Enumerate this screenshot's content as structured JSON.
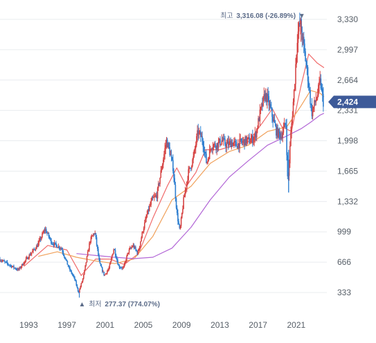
{
  "chart_data": {
    "type": "candlestick",
    "ylim": [
      280,
      3350
    ],
    "xlim": [
      1990,
      2024.2
    ],
    "y_ticks": [
      "3,330",
      "2,997",
      "2,664",
      "2,331",
      "1,998",
      "1,665",
      "1,332",
      "999",
      "666",
      "333"
    ],
    "y_tick_values": [
      3330,
      2997,
      2664,
      2331,
      1998,
      1665,
      1332,
      999,
      666,
      333
    ],
    "x_ticks": [
      "1993",
      "1997",
      "2001",
      "2005",
      "2009",
      "2013",
      "2017",
      "2021"
    ],
    "x_tick_values": [
      1993,
      1997,
      2001,
      2005,
      2009,
      2013,
      2017,
      2021
    ],
    "current": {
      "label": "2,424",
      "value": 2424
    },
    "high": {
      "label_prefix": "최고",
      "label_value": "3,316.08 (-26.89%)",
      "marker": "▼",
      "x": 2021.5,
      "value": 3316
    },
    "low": {
      "label_prefix": "최저",
      "label_value": "277.37 (774.07%)",
      "marker": "▲",
      "x": 1998.3,
      "value": 277
    },
    "price": {
      "x": [
        1990,
        1991,
        1992,
        1993,
        1994,
        1994.8,
        1995.5,
        1996.5,
        1997.3,
        1997.9,
        1998.3,
        1998.8,
        1999.5,
        2000.0,
        2000.5,
        2001.0,
        2001.5,
        2002.0,
        2002.5,
        2003.0,
        2003.5,
        2004.0,
        2004.5,
        2005.0,
        2005.5,
        2006.0,
        2006.5,
        2007.0,
        2007.5,
        2007.8,
        2008.2,
        2008.6,
        2008.9,
        2009.3,
        2009.8,
        2010.3,
        2010.8,
        2011.3,
        2011.7,
        2012.2,
        2012.7,
        2013.3,
        2013.8,
        2014.3,
        2014.8,
        2015.3,
        2015.8,
        2016.3,
        2016.8,
        2017.3,
        2017.8,
        2018.1,
        2018.5,
        2019.0,
        2019.5,
        2020.0,
        2020.2,
        2020.5,
        2020.9,
        2021.2,
        2021.5,
        2021.9,
        2022.3,
        2022.7,
        2023.0,
        2023.3,
        2023.6,
        2023.9
      ],
      "y": [
        700,
        640,
        580,
        720,
        850,
        1030,
        880,
        820,
        600,
        480,
        330,
        500,
        900,
        1000,
        650,
        520,
        600,
        820,
        620,
        600,
        780,
        850,
        760,
        1000,
        1200,
        1350,
        1400,
        1700,
        2000,
        1900,
        1700,
        1200,
        1000,
        1350,
        1650,
        1800,
        2100,
        2000,
        1750,
        1950,
        1950,
        2000,
        1950,
        1980,
        1950,
        1980,
        2000,
        2000,
        2050,
        2300,
        2500,
        2450,
        2300,
        2100,
        2050,
        2200,
        1500,
        2050,
        2600,
        3150,
        3300,
        3000,
        2700,
        2300,
        2400,
        2500,
        2650,
        2424
      ]
    },
    "ma_series": [
      {
        "x": [
          1992.5,
          1995,
          1997,
          1998.5,
          2000,
          2001.5,
          2003,
          2004.5,
          2006,
          2007.5,
          2008.5,
          2009.5,
          2010.5,
          2011.5,
          2013,
          2014.5,
          2016,
          2017.5,
          2018.5,
          2019.5,
          2020.5,
          2021.5,
          2022.3,
          2023.2,
          2023.9
        ],
        "y": [
          620,
          850,
          800,
          520,
          700,
          700,
          640,
          760,
          1150,
          1500,
          1700,
          1500,
          1650,
          1900,
          1900,
          1950,
          1990,
          2200,
          2350,
          2150,
          2100,
          2600,
          2950,
          2850,
          2800
        ]
      },
      {
        "x": [
          1994,
          1996,
          1998,
          2000,
          2002,
          2004,
          2006,
          2008,
          2010,
          2012,
          2014,
          2016,
          2018,
          2020,
          2021.5,
          2022.5,
          2023.5,
          2023.9
        ],
        "y": [
          730,
          780,
          720,
          680,
          650,
          700,
          950,
          1350,
          1500,
          1750,
          1880,
          1950,
          2100,
          2150,
          2380,
          2550,
          2520,
          2480
        ]
      },
      {
        "x": [
          1998,
          2000,
          2002,
          2004,
          2006,
          2008,
          2010,
          2012,
          2014,
          2016,
          2018,
          2020,
          2021.5,
          2022.5,
          2023.5,
          2023.9
        ],
        "y": [
          760,
          740,
          720,
          705,
          720,
          820,
          1050,
          1350,
          1600,
          1780,
          1950,
          2050,
          2130,
          2200,
          2280,
          2300
        ]
      }
    ],
    "colors": {
      "up": "#d64545",
      "down": "#2f7fd0",
      "ma_short": "#f06a6a",
      "ma_mid": "#f0a05a",
      "ma_long": "#b266d6",
      "grid": "#e9ecef",
      "badge": "#3d5a99",
      "high_label": "#5b6b88",
      "low_label": "#5b6b88"
    }
  }
}
